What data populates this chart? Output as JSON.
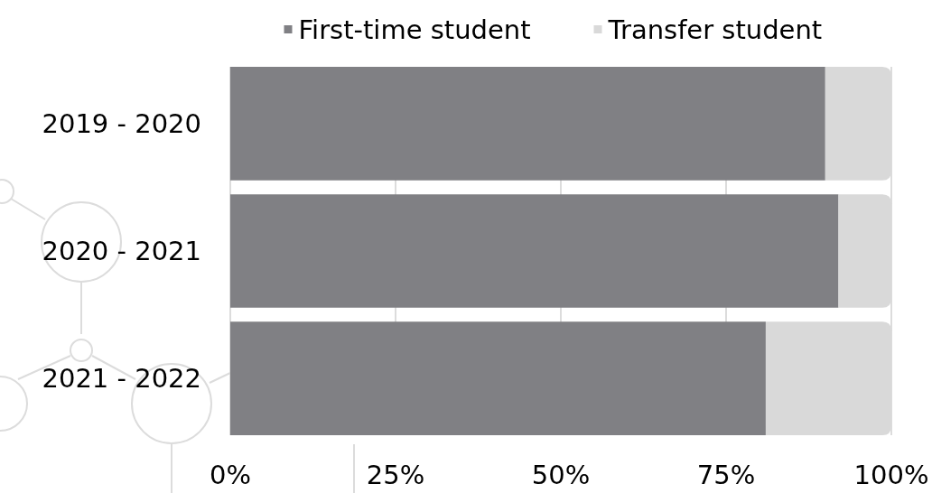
{
  "chart_data": {
    "type": "bar",
    "orientation": "horizontal",
    "stacked": true,
    "categories": [
      "2019 - 2020",
      "2020 - 2021",
      "2021 - 2022"
    ],
    "series": [
      {
        "name": "First-time student",
        "color": "#808084",
        "values": [
          90,
          92,
          81
        ]
      },
      {
        "name": "Transfer student",
        "color": "#d9d9d9",
        "values": [
          10,
          8,
          19
        ]
      }
    ],
    "xlim": [
      0,
      100
    ],
    "xticks": [
      {
        "value": 0,
        "label": "0%"
      },
      {
        "value": 25,
        "label": "25%"
      },
      {
        "value": 50,
        "label": "50%"
      },
      {
        "value": 75,
        "label": "75%"
      },
      {
        "value": 100,
        "label": "100%"
      }
    ],
    "grid": "x",
    "legend": "top"
  }
}
